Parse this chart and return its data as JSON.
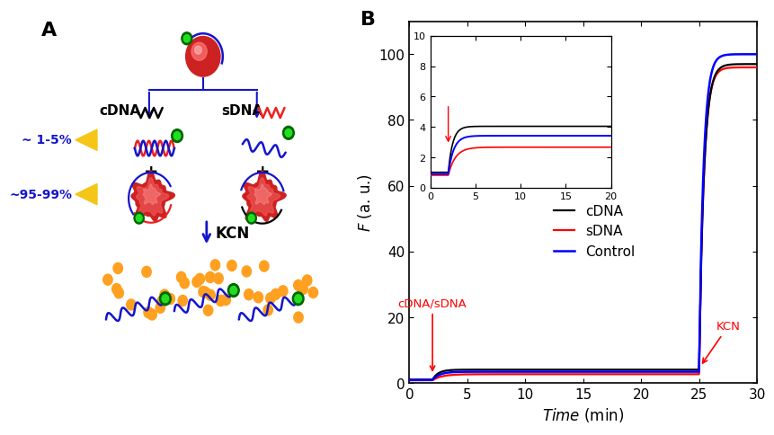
{
  "panel_B": {
    "title": "B",
    "xlabel": "Time (min)",
    "ylabel": "F (a. u.)",
    "xlim": [
      0,
      30
    ],
    "ylim": [
      0,
      110
    ],
    "xticks": [
      0,
      5,
      10,
      15,
      20,
      25,
      30
    ],
    "yticks": [
      0,
      20,
      40,
      60,
      80,
      100
    ],
    "lines": {
      "cDNA": {
        "color": "#000000",
        "label": "cDNA"
      },
      "sDNA": {
        "color": "#ff0000",
        "label": "sDNA"
      },
      "Control": {
        "color": "#0000ff",
        "label": "Control"
      }
    },
    "inset": {
      "xlim": [
        0,
        20
      ],
      "ylim": [
        0,
        10
      ],
      "xticks": [
        0,
        5,
        10,
        15,
        20
      ],
      "yticks": [
        0,
        2,
        4,
        6,
        8,
        10
      ]
    }
  },
  "panel_A": {
    "title": "A",
    "label_1_5": "~ 1-5%",
    "label_95_99": "~95-99%",
    "cdna_text": "cDNA",
    "sdna_text": "sDNA",
    "kcn_text": "KCN"
  },
  "colors": {
    "blue": "#1515cc",
    "red": "#ee2020",
    "black": "#000000",
    "gold": "#f5c518",
    "green": "#22dd22",
    "dark_green": "#006600",
    "orange": "#ffa020",
    "background": "#ffffff"
  }
}
